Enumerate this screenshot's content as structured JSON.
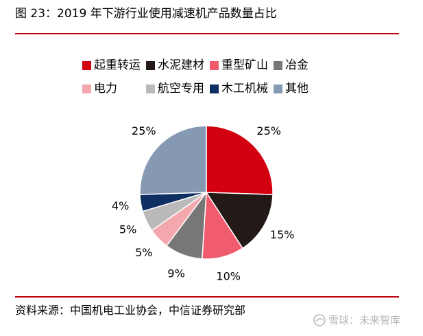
{
  "figure": {
    "title": "图 23：2019 年下游行业使用减速机产品数量占比",
    "source": "资料来源：中国机电工业协会，中信证券研究部",
    "watermark": "雪球：未来智库"
  },
  "chart_data": {
    "type": "pie",
    "title": "",
    "categories": [
      "起重转运",
      "水泥建材",
      "重型矿山",
      "冶金",
      "电力",
      "航空专用",
      "木工机械",
      "其他"
    ],
    "values": [
      25,
      15,
      10,
      9,
      5,
      5,
      4,
      25
    ],
    "value_labels": [
      "25%",
      "15%",
      "10%",
      "9%",
      "5%",
      "5%",
      "4%",
      "25%"
    ],
    "colors": [
      "#d3000f",
      "#231916",
      "#f05c6e",
      "#777777",
      "#f4a7ac",
      "#bababa",
      "#0e2f61",
      "#8699b2"
    ],
    "legend_position": "top",
    "start_angle": "12 o'clock, clockwise"
  }
}
